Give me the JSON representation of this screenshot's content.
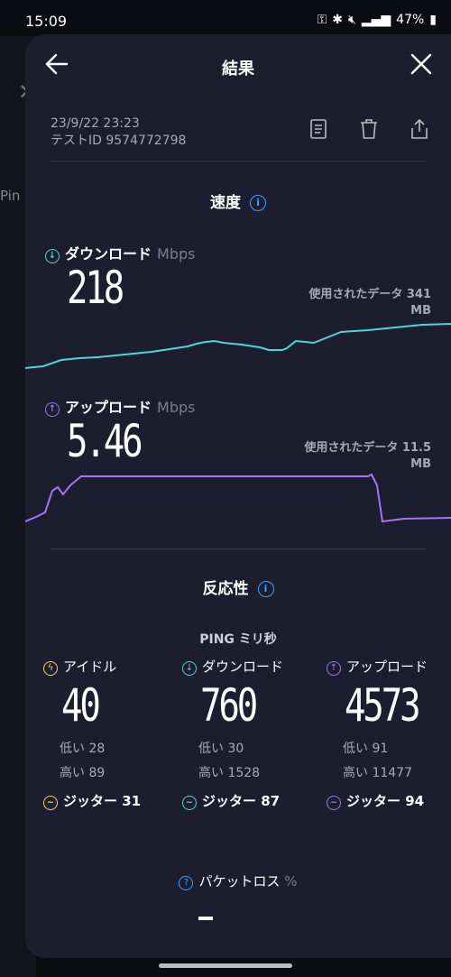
{
  "status": {
    "time": "15:09",
    "battery": "47%"
  },
  "background": {
    "ping_label": "Pin"
  },
  "header": {
    "title": "結果"
  },
  "meta": {
    "date": "23/9/22 23:23",
    "test_id": "テストID 9574772798"
  },
  "speed": {
    "title": "速度",
    "download": {
      "label": "ダウンロード",
      "unit": "Mbps",
      "value": "218",
      "used_label": "使用されたデータ 341",
      "used_unit": "MB"
    },
    "upload": {
      "label": "アップロード",
      "unit": "Mbps",
      "value": "5.46",
      "used_label": "使用されたデータ 11.5",
      "used_unit": "MB"
    }
  },
  "responsiveness": {
    "title": "反応性",
    "ping_title": "PING ミリ秒",
    "idle": {
      "label": "アイドル",
      "value": "40",
      "low": "低い 28",
      "high": "高い 89",
      "jitter": "ジッター 31"
    },
    "download": {
      "label": "ダウンロード",
      "value": "760",
      "low": "低い 30",
      "high": "高い 1528",
      "jitter": "ジッター 87"
    },
    "upload": {
      "label": "アップロード",
      "value": "4573",
      "low": "低い 91",
      "high": "高い 11477",
      "jitter": "ジッター 94"
    }
  },
  "packet_loss": {
    "label": "パケットロス",
    "unit": "%"
  },
  "colors": {
    "download": "#4fd6d6",
    "upload": "#a774f2",
    "idle": "#f2d15b",
    "info": "#3aa0ff",
    "sheet": "#1c1d2e"
  }
}
